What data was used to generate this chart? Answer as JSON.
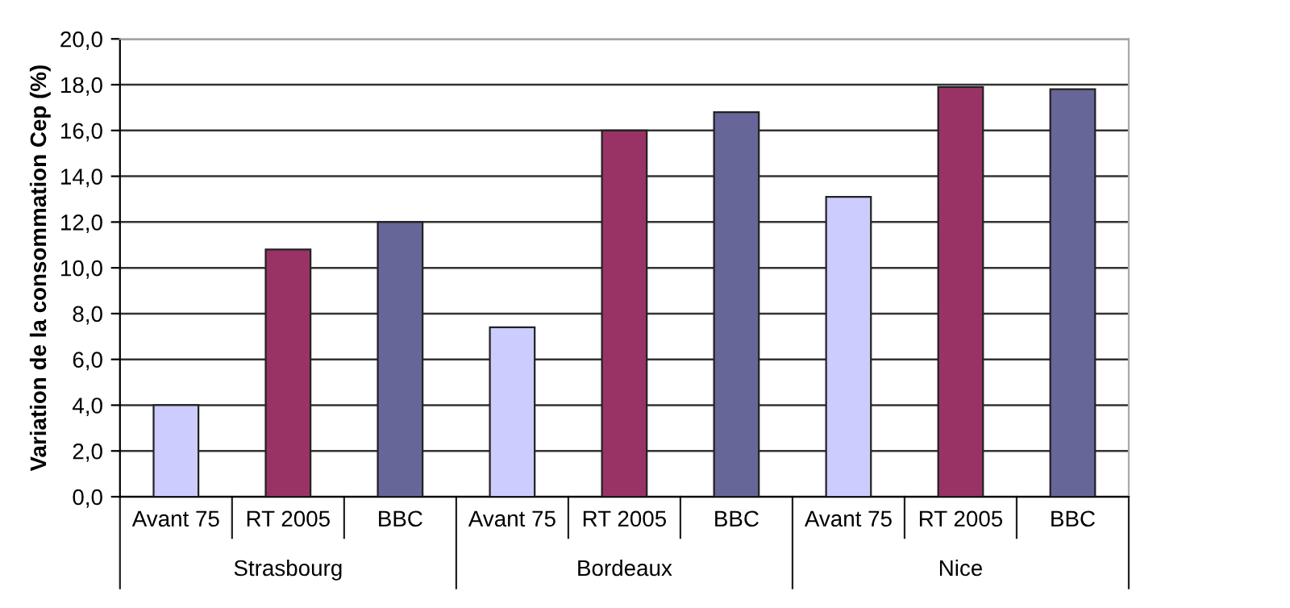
{
  "chart_data": {
    "type": "bar",
    "ylabel": "Variation de la consommation Cep (%)",
    "categories": [
      "Avant 75",
      "RT 2005",
      "BBC",
      "Avant 75",
      "RT 2005",
      "BBC",
      "Avant 75",
      "RT 2005",
      "BBC"
    ],
    "values": [
      4.0,
      10.8,
      12.0,
      7.4,
      16.0,
      16.8,
      13.1,
      17.9,
      17.8
    ],
    "colors": [
      "#ccccff",
      "#993366",
      "#666699",
      "#ccccff",
      "#993366",
      "#666699",
      "#ccccff",
      "#993366",
      "#666699"
    ],
    "annotations": [
      "Strasbourg",
      "Bordeaux",
      "Nice"
    ],
    "ylim": [
      0,
      20
    ],
    "yticks": [
      {
        "value": 0,
        "label": "0,0"
      },
      {
        "value": 2,
        "label": "2,0"
      },
      {
        "value": 4,
        "label": "4,0"
      },
      {
        "value": 6,
        "label": "6,0"
      },
      {
        "value": 8,
        "label": "8,0"
      },
      {
        "value": 10,
        "label": "10,0"
      },
      {
        "value": 12,
        "label": "12,0"
      },
      {
        "value": 14,
        "label": "14,0"
      },
      {
        "value": 16,
        "label": "16,0"
      },
      {
        "value": 18,
        "label": "18,0"
      },
      {
        "value": 20,
        "label": "20,0"
      }
    ],
    "grid": "y"
  }
}
